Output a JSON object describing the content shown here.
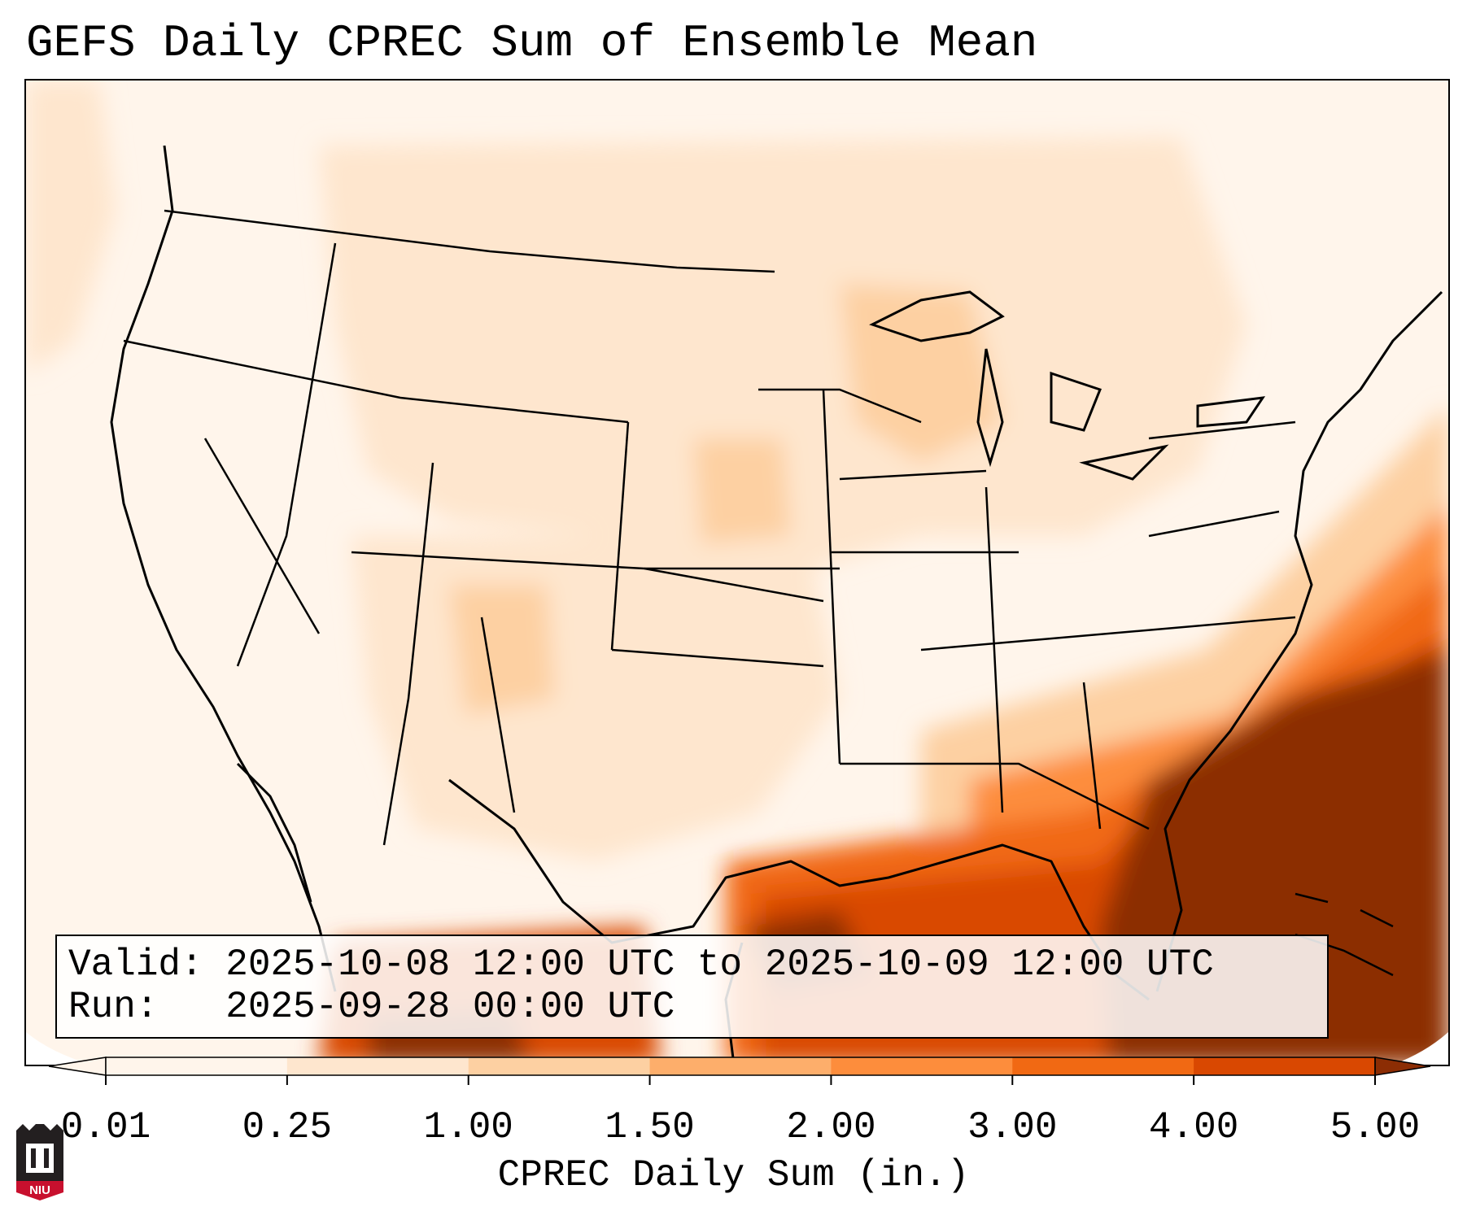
{
  "title": "GEFS Daily CPREC Sum of Ensemble Mean",
  "info": {
    "valid_line": "Valid: 2025-10-08 12:00 UTC to 2025-10-09 12:00 UTC",
    "run_line": "Run:   2025-09-28 00:00 UTC"
  },
  "colorbar": {
    "label": "CPREC Daily Sum (in.)",
    "ticks": [
      "0.01",
      "0.25",
      "1.00",
      "1.50",
      "2.00",
      "3.00",
      "4.00",
      "5.00"
    ],
    "colors": [
      "#fff5eb",
      "#fee6ce",
      "#fdd0a2",
      "#fdae6b",
      "#fd8d3c",
      "#f16913",
      "#d94801",
      "#8c2d04"
    ],
    "extend": "both"
  },
  "logo": {
    "text": "NIU",
    "color": "#c8102e"
  }
}
